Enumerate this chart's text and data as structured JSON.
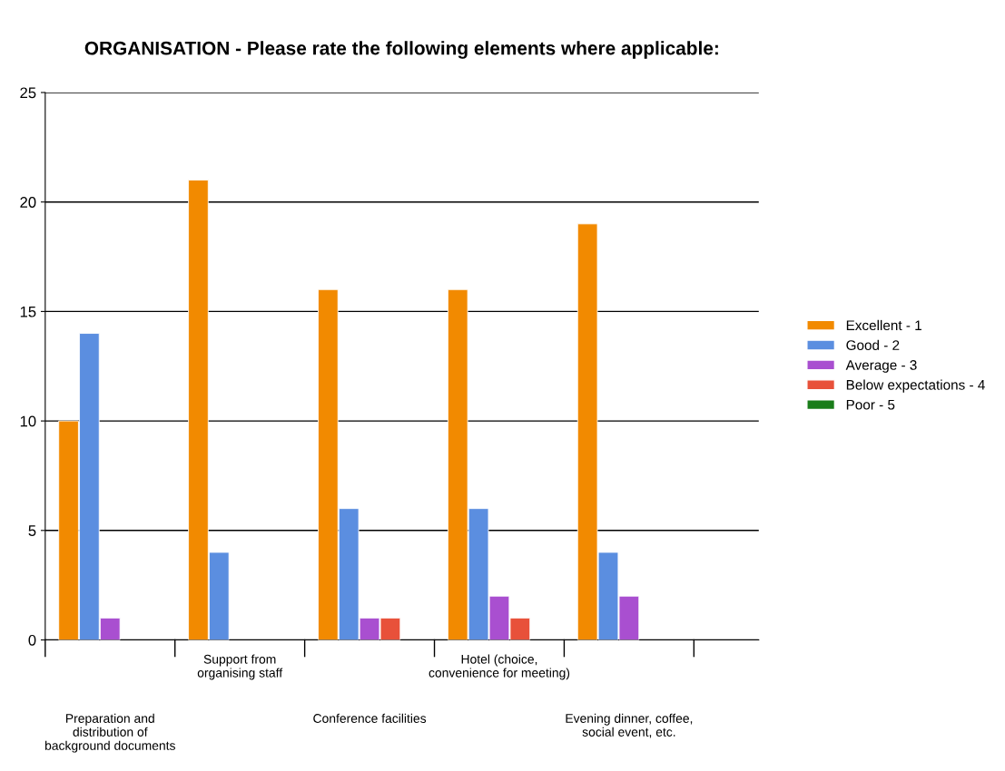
{
  "chart_data": {
    "type": "bar",
    "title": "ORGANISATION - Please rate the following elements where applicable:",
    "categories": [
      "Preparation and\ndistribution of\nbackground documents",
      "Support from\norganising staff",
      "Conference facilities",
      "Hotel (choice,\nconvenience for meeting)",
      "Evening dinner, coffee,\nsocial event, etc."
    ],
    "series": [
      {
        "name": "Excellent - 1",
        "color": "#f28a00",
        "values": [
          10,
          21,
          16,
          16,
          19
        ]
      },
      {
        "name": "Good - 2",
        "color": "#5b8ee0",
        "values": [
          14,
          4,
          6,
          6,
          4
        ]
      },
      {
        "name": "Average - 3",
        "color": "#a94fd0",
        "values": [
          1,
          null,
          1,
          2,
          2
        ]
      },
      {
        "name": "Below expectations - 4",
        "color": "#e8513a",
        "values": [
          null,
          null,
          1,
          1,
          null
        ]
      },
      {
        "name": "Poor - 5",
        "color": "#1a7d1a",
        "values": [
          null,
          null,
          null,
          null,
          null
        ]
      }
    ],
    "ylim": [
      0,
      25
    ],
    "yticks": [
      0,
      5,
      10,
      15,
      20,
      25
    ],
    "grid": "y",
    "legend": "right"
  }
}
